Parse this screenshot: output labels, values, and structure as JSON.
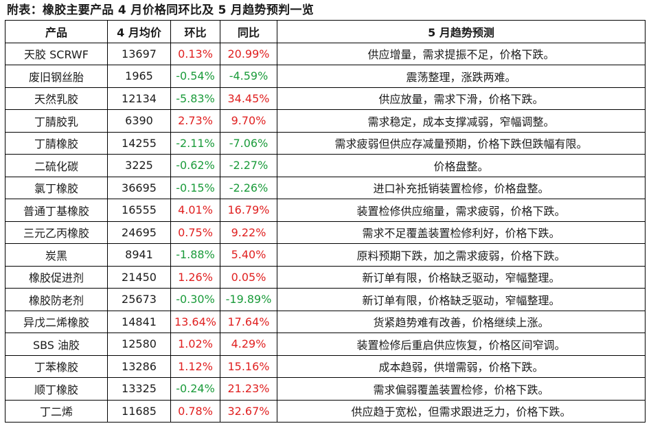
{
  "caption": "附表：橡胶主要产品 4 月价格同环比及 5 月趋势预判一览",
  "headers": [
    "产品",
    "4 月均价",
    "环比",
    "同比",
    "5 月趋势预测"
  ],
  "colors": {
    "positive": "#e02020",
    "negative": "#1a9b3a"
  },
  "rows": [
    {
      "name": "天胶 SCRWF",
      "price": "13697",
      "mom": "0.13%",
      "yoy": "20.99%",
      "trend": "供应增量，需求提振不足，价格下跌。"
    },
    {
      "name": "废旧钢丝胎",
      "price": "1965",
      "mom": "-0.54%",
      "yoy": "-4.59%",
      "trend": "震荡整理，涨跌两难。"
    },
    {
      "name": "天然乳胶",
      "price": "12134",
      "mom": "-5.83%",
      "yoy": "34.45%",
      "trend": "供应放量，需求下滑，价格下跌。"
    },
    {
      "name": "丁腈胶乳",
      "price": "6390",
      "mom": "2.73%",
      "yoy": "9.70%",
      "trend": "需求稳定，成本支撑减弱，窄幅调整。"
    },
    {
      "name": "丁腈橡胶",
      "price": "14255",
      "mom": "-2.11%",
      "yoy": "-7.06%",
      "trend": "需求疲弱但供应存减量预期，价格下跌但跌幅有限。"
    },
    {
      "name": "二硫化碳",
      "price": "3225",
      "mom": "-0.62%",
      "yoy": "-2.27%",
      "trend": "价格盘整。"
    },
    {
      "name": "氯丁橡胶",
      "price": "36695",
      "mom": "-0.15%",
      "yoy": "-2.26%",
      "trend": "进口补充抵销装置检修，价格盘整。"
    },
    {
      "name": "普通丁基橡胶",
      "price": "16555",
      "mom": "4.01%",
      "yoy": "16.79%",
      "trend": "装置检修供应缩量，需求疲弱，价格下跌。"
    },
    {
      "name": "三元乙丙橡胶",
      "price": "24695",
      "mom": "0.75%",
      "yoy": "9.22%",
      "trend": "需求不足覆盖装置检修利好，价格下跌。"
    },
    {
      "name": "炭黑",
      "price": "8941",
      "mom": "-1.88%",
      "yoy": "5.40%",
      "trend": "原料预期下跌，加之需求疲弱，价格下跌。"
    },
    {
      "name": "橡胶促进剂",
      "price": "21450",
      "mom": "1.26%",
      "yoy": "0.05%",
      "trend": "新订单有限，价格缺乏驱动，窄幅整理。"
    },
    {
      "name": "橡胶防老剂",
      "price": "25673",
      "mom": "-0.30%",
      "yoy": "-19.89%",
      "trend": "新订单有限，价格缺乏驱动，窄幅整理。"
    },
    {
      "name": "异戊二烯橡胶",
      "price": "14841",
      "mom": "13.64%",
      "yoy": "17.64%",
      "trend": "货紧趋势难有改善，价格继续上涨。"
    },
    {
      "name": "SBS 油胶",
      "price": "12580",
      "mom": "1.02%",
      "yoy": "4.29%",
      "trend": "装置检修后重启供应恢复，价格区间窄调。"
    },
    {
      "name": "丁苯橡胶",
      "price": "13286",
      "mom": "1.12%",
      "yoy": "15.16%",
      "trend": "成本趋弱，供增需弱，价格下跌。"
    },
    {
      "name": "顺丁橡胶",
      "price": "13325",
      "mom": "-0.24%",
      "yoy": "21.23%",
      "trend": "需求偏弱覆盖装置检修，价格下跌。"
    },
    {
      "name": "丁二烯",
      "price": "11685",
      "mom": "0.78%",
      "yoy": "32.67%",
      "trend": "供应趋于宽松，但需求跟进乏力，价格下跌。"
    }
  ]
}
